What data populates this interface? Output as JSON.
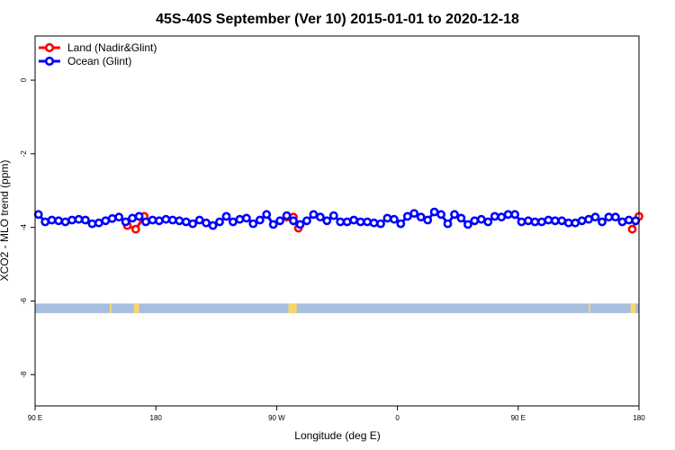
{
  "chart_data": {
    "type": "line",
    "title": "45S-40S September (Ver 10)   2015-01-01 to 2020-12-18",
    "xlabel": "Longitude (deg E)",
    "ylabel": "XCO2 - MLO trend (ppm)",
    "xlim": [
      90,
      450
    ],
    "ylim": [
      -8.85,
      1.2
    ],
    "x_ticks": [
      {
        "value": 90,
        "label": "90 E"
      },
      {
        "value": 162,
        "label": "180"
      },
      {
        "value": 234,
        "label": "90 W"
      },
      {
        "value": 306,
        "label": "0"
      },
      {
        "value": 378,
        "label": "90 E"
      },
      {
        "value": 450,
        "label": "180"
      }
    ],
    "y_ticks": [
      {
        "value": 0,
        "label": "0"
      },
      {
        "value": -2,
        "label": "-2"
      },
      {
        "value": -4,
        "label": "-4"
      },
      {
        "value": -6,
        "label": "-6"
      },
      {
        "value": -8,
        "label": "-8"
      }
    ],
    "legend": {
      "position": "top-left",
      "entries": [
        {
          "label": "Land (Nadir&Glint)",
          "color": "#ff0000"
        },
        {
          "label": "Ocean (Glint)",
          "color": "#0000ff"
        }
      ]
    },
    "land_strip": {
      "y_range": [
        -6.33,
        -6.07
      ],
      "ocean_color": "#a7bfdf",
      "land_color": "#f7d66c",
      "land_x_ranges": [
        [
          134.5,
          135.5
        ],
        [
          149,
          152
        ],
        [
          241,
          246
        ],
        [
          420,
          421
        ],
        [
          445,
          448
        ]
      ]
    },
    "series": [
      {
        "name": "Land (Nadir&Glint)",
        "color": "#ff0000",
        "segments": [
          [
            {
              "x": 145,
              "y": -3.95
            },
            {
              "x": 150,
              "y": -4.05
            },
            {
              "x": 155,
              "y": -3.7
            }
          ],
          [
            {
              "x": 240,
              "y": -3.72
            },
            {
              "x": 244,
              "y": -3.72
            },
            {
              "x": 247,
              "y": -4.02
            }
          ],
          [
            {
              "x": 446,
              "y": -4.05
            },
            {
              "x": 450,
              "y": -3.7
            }
          ]
        ]
      },
      {
        "name": "Ocean (Glint)",
        "color": "#0000ff",
        "x": [
          92,
          96,
          100,
          104,
          108,
          112,
          116,
          120,
          124,
          128,
          132,
          136,
          140,
          144,
          148,
          152,
          156,
          160,
          164,
          168,
          172,
          176,
          180,
          184,
          188,
          192,
          196,
          200,
          204,
          208,
          212,
          216,
          220,
          224,
          228,
          232,
          236,
          240,
          244,
          248,
          252,
          256,
          260,
          264,
          268,
          272,
          276,
          280,
          284,
          288,
          292,
          296,
          300,
          304,
          308,
          312,
          316,
          320,
          324,
          328,
          332,
          336,
          340,
          344,
          348,
          352,
          356,
          360,
          364,
          368,
          372,
          376,
          380,
          384,
          388,
          392,
          396,
          400,
          404,
          408,
          412,
          416,
          420,
          424,
          428,
          432,
          436,
          440,
          444,
          448
        ],
        "values": [
          -3.65,
          -3.85,
          -3.8,
          -3.82,
          -3.85,
          -3.8,
          -3.78,
          -3.8,
          -3.9,
          -3.88,
          -3.82,
          -3.76,
          -3.72,
          -3.85,
          -3.75,
          -3.7,
          -3.85,
          -3.8,
          -3.82,
          -3.78,
          -3.8,
          -3.82,
          -3.85,
          -3.9,
          -3.8,
          -3.88,
          -3.95,
          -3.85,
          -3.7,
          -3.85,
          -3.78,
          -3.75,
          -3.9,
          -3.8,
          -3.65,
          -3.92,
          -3.82,
          -3.68,
          -3.82,
          -3.92,
          -3.82,
          -3.65,
          -3.72,
          -3.82,
          -3.68,
          -3.85,
          -3.85,
          -3.8,
          -3.85,
          -3.85,
          -3.88,
          -3.9,
          -3.75,
          -3.78,
          -3.9,
          -3.7,
          -3.62,
          -3.72,
          -3.8,
          -3.58,
          -3.65,
          -3.9,
          -3.65,
          -3.75,
          -3.92,
          -3.82,
          -3.78,
          -3.85,
          -3.7,
          -3.72,
          -3.65,
          -3.65,
          -3.85,
          -3.82,
          -3.85,
          -3.85,
          -3.8,
          -3.82,
          -3.82,
          -3.88,
          -3.88,
          -3.82,
          -3.78,
          -3.72,
          -3.85,
          -3.72,
          -3.72,
          -3.85,
          -3.8,
          -3.82
        ]
      }
    ]
  }
}
